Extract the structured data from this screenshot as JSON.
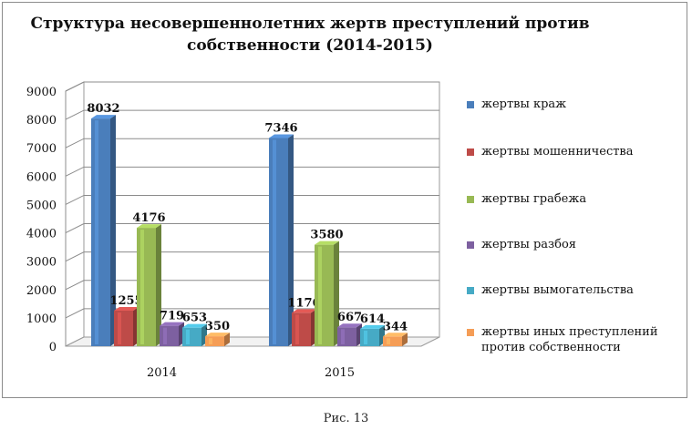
{
  "figure": {
    "caption": "Рис. 13"
  },
  "chart_data": {
    "type": "bar",
    "title": "Структура несовершеннолетних жертв преступлений против собственности (2014-2015)",
    "categories": [
      "2014",
      "2015"
    ],
    "ylim": [
      0,
      9000
    ],
    "yticks": [
      0,
      1000,
      2000,
      3000,
      4000,
      5000,
      6000,
      7000,
      8000,
      9000
    ],
    "grid": true,
    "legend_position": "right",
    "series": [
      {
        "name": "жертвы краж",
        "values": [
          8032,
          7346
        ],
        "color": "#4a7ebb"
      },
      {
        "name": "жертвы мошенничества",
        "values": [
          1255,
          1176
        ],
        "color": "#be4b48"
      },
      {
        "name": "жертвы грабежа",
        "values": [
          4176,
          3580
        ],
        "color": "#98b954"
      },
      {
        "name": "жертвы разбоя",
        "values": [
          719,
          667
        ],
        "color": "#7d60a0"
      },
      {
        "name": "жертвы вымогательства",
        "values": [
          653,
          614
        ],
        "color": "#46aac5"
      },
      {
        "name": "жертвы иных преступлений против собственности",
        "values": [
          350,
          344
        ],
        "color": "#f59d56"
      }
    ]
  }
}
